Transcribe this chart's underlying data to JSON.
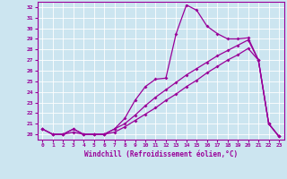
{
  "xlabel": "Windchill (Refroidissement éolien,°C)",
  "bg_color": "#cce5f0",
  "line_color": "#990099",
  "grid_color": "#ffffff",
  "xlim": [
    -0.5,
    23.5
  ],
  "ylim": [
    19.5,
    32.5
  ],
  "xticks": [
    0,
    1,
    2,
    3,
    4,
    5,
    6,
    7,
    8,
    9,
    10,
    11,
    12,
    13,
    14,
    15,
    16,
    17,
    18,
    19,
    20,
    21,
    22,
    23
  ],
  "yticks": [
    20,
    21,
    22,
    23,
    24,
    25,
    26,
    27,
    28,
    29,
    30,
    31,
    32
  ],
  "curve1_x": [
    0,
    1,
    2,
    3,
    4,
    5,
    6,
    7,
    8,
    9,
    10,
    11,
    12,
    13,
    14,
    15,
    16,
    17,
    18,
    19,
    20,
    21,
    22,
    23
  ],
  "curve1_y": [
    20.5,
    20.0,
    20.0,
    20.5,
    20.0,
    20.0,
    20.0,
    20.5,
    21.5,
    23.2,
    24.5,
    25.2,
    25.3,
    29.5,
    32.2,
    31.7,
    30.2,
    29.5,
    29.0,
    29.0,
    29.1,
    27.0,
    21.0,
    19.8
  ],
  "curve2_x": [
    0,
    1,
    2,
    3,
    4,
    5,
    6,
    7,
    8,
    9,
    10,
    11,
    12,
    13,
    14,
    15,
    16,
    17,
    18,
    19,
    20,
    21,
    22,
    23
  ],
  "curve2_y": [
    20.5,
    20.0,
    20.0,
    20.5,
    20.0,
    20.0,
    20.0,
    20.5,
    21.0,
    21.8,
    22.7,
    23.5,
    24.2,
    24.9,
    25.6,
    26.2,
    26.8,
    27.4,
    27.9,
    28.4,
    28.9,
    27.0,
    21.0,
    19.8
  ],
  "curve3_x": [
    0,
    1,
    2,
    3,
    4,
    5,
    6,
    7,
    8,
    9,
    10,
    11,
    12,
    13,
    14,
    15,
    16,
    17,
    18,
    19,
    20,
    21,
    22,
    23
  ],
  "curve3_y": [
    20.5,
    20.0,
    20.0,
    20.2,
    20.0,
    20.0,
    20.0,
    20.2,
    20.7,
    21.3,
    21.9,
    22.5,
    23.2,
    23.8,
    24.5,
    25.1,
    25.8,
    26.4,
    27.0,
    27.5,
    28.1,
    27.0,
    21.0,
    19.8
  ],
  "marker_size": 2.0,
  "tick_fontsize": 4.5,
  "xlabel_fontsize": 5.5
}
